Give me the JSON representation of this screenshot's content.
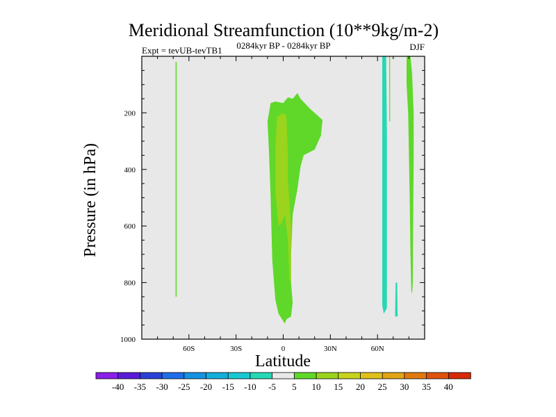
{
  "chart_data": {
    "type": "heatmap",
    "title": "Meridional Streamfunction (10**9kg/m-2)",
    "subtitle_left": "Expt = tevUB-tevTB1",
    "subtitle_center": "0284kyr BP - 0284kyr BP",
    "subtitle_right": "DJF",
    "xlabel": "Latitude",
    "ylabel": "Pressure (in hPa)",
    "xlim": [
      -90,
      90
    ],
    "ylim": [
      1000,
      0
    ],
    "y_reversed": true,
    "x_ticks": [
      {
        "value": -60,
        "label": "60S"
      },
      {
        "value": -30,
        "label": "30S"
      },
      {
        "value": 0,
        "label": "0"
      },
      {
        "value": 30,
        "label": "30N"
      },
      {
        "value": 60,
        "label": "60N"
      }
    ],
    "y_ticks": [
      {
        "value": 200,
        "label": "200"
      },
      {
        "value": 400,
        "label": "400"
      },
      {
        "value": 600,
        "label": "600"
      },
      {
        "value": 800,
        "label": "800"
      },
      {
        "value": 1000,
        "label": "1000"
      }
    ],
    "background_color": "#e8e8e8",
    "colorbar": {
      "labels": [
        "-40",
        "-35",
        "-30",
        "-25",
        "-20",
        "-15",
        "-10",
        "-5",
        "5",
        "10",
        "15",
        "20",
        "25",
        "30",
        "35",
        "40"
      ],
      "colors": [
        "#8a1fe8",
        "#5a1cd8",
        "#2a3fd8",
        "#1f6ee8",
        "#1792e0",
        "#14aedb",
        "#18c8d2",
        "#26d8b4",
        "#e8e8e8",
        "#5fd82a",
        "#9ad41c",
        "#c8d41c",
        "#e0c01a",
        "#e0a414",
        "#e07a10",
        "#e05210",
        "#d82808"
      ]
    },
    "regions": [
      {
        "level": "5 to 10",
        "color": "#5fd82a",
        "points": [
          [
            -68.5,
            20
          ],
          [
            -67.8,
            20
          ],
          [
            -67.8,
            850
          ],
          [
            -68.5,
            850
          ]
        ]
      },
      {
        "level": "5 to 10",
        "color": "#5fd82a",
        "points": [
          [
            -8,
            165
          ],
          [
            -5,
            160
          ],
          [
            0,
            165
          ],
          [
            3,
            145
          ],
          [
            6,
            150
          ],
          [
            9,
            130
          ],
          [
            11,
            150
          ],
          [
            17,
            185
          ],
          [
            25,
            225
          ],
          [
            24,
            280
          ],
          [
            20,
            330
          ],
          [
            13,
            350
          ],
          [
            11,
            390
          ],
          [
            9,
            470
          ],
          [
            6,
            560
          ],
          [
            5,
            700
          ],
          [
            5,
            800
          ],
          [
            6,
            870
          ],
          [
            5,
            920
          ],
          [
            2,
            930
          ],
          [
            1,
            945
          ],
          [
            -3,
            910
          ],
          [
            -5,
            860
          ],
          [
            -7,
            720
          ],
          [
            -8,
            500
          ],
          [
            -9,
            340
          ],
          [
            -10,
            230
          ]
        ]
      },
      {
        "level": "10 to 15",
        "color": "#9ad41c",
        "points": [
          [
            -4,
            215
          ],
          [
            0,
            200
          ],
          [
            2,
            210
          ],
          [
            3,
            350
          ],
          [
            3,
            440
          ],
          [
            5,
            600
          ],
          [
            5,
            760
          ],
          [
            5,
            800
          ],
          [
            4,
            790
          ],
          [
            3,
            650
          ],
          [
            1,
            560
          ],
          [
            -1,
            590
          ],
          [
            -3,
            600
          ],
          [
            -5,
            480
          ],
          [
            -5,
            330
          ]
        ]
      },
      {
        "level": "-10 to -5",
        "color": "#26d8b4",
        "points": [
          [
            63,
            0
          ],
          [
            65.5,
            0
          ],
          [
            66,
            280
          ],
          [
            66,
            600
          ],
          [
            66,
            890
          ],
          [
            64,
            910
          ],
          [
            63,
            880
          ],
          [
            63,
            500
          ]
        ]
      },
      {
        "level": "5 to 10",
        "color": "#5fd82a",
        "points": [
          [
            67.5,
            0
          ],
          [
            68,
            0
          ],
          [
            68,
            230
          ],
          [
            67.5,
            230
          ]
        ]
      },
      {
        "level": "-10 to -5",
        "color": "#26d8b4",
        "points": [
          [
            71.5,
            800
          ],
          [
            72.5,
            800
          ],
          [
            72.8,
            920
          ],
          [
            71.2,
            920
          ]
        ]
      },
      {
        "level": "5 to 10",
        "color": "#5fd82a",
        "points": [
          [
            78.5,
            0
          ],
          [
            81,
            0
          ],
          [
            82,
            60
          ],
          [
            83,
            200
          ],
          [
            83,
            380
          ],
          [
            82.8,
            500
          ],
          [
            82.5,
            800
          ],
          [
            82,
            840
          ],
          [
            81.5,
            830
          ],
          [
            81,
            700
          ],
          [
            80.5,
            500
          ],
          [
            79.5,
            200
          ],
          [
            78.5,
            100
          ]
        ]
      }
    ]
  }
}
